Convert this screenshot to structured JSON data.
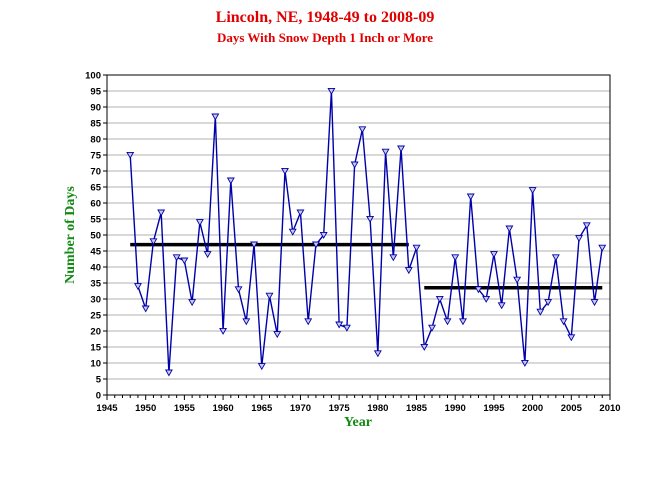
{
  "chart_data": {
    "type": "line",
    "title": "Lincoln, NE, 1948-49 to 2008-09",
    "subtitle": "Days With Snow Depth 1 Inch or More",
    "xlabel": "Year",
    "ylabel": "Number of Days",
    "xlim": [
      1945,
      2010
    ],
    "ylim": [
      0,
      100
    ],
    "xticks": [
      1945,
      1950,
      1955,
      1960,
      1965,
      1970,
      1975,
      1980,
      1985,
      1990,
      1995,
      2000,
      2005,
      2010
    ],
    "yticks": [
      0,
      5,
      10,
      15,
      20,
      25,
      30,
      35,
      40,
      45,
      50,
      55,
      60,
      65,
      70,
      75,
      80,
      85,
      90,
      95,
      100
    ],
    "grid": true,
    "series": [
      {
        "color": "#0000aa",
        "marker": "triangle-down",
        "x": [
          1948,
          1949,
          1950,
          1951,
          1952,
          1953,
          1954,
          1955,
          1956,
          1957,
          1958,
          1959,
          1960,
          1961,
          1962,
          1963,
          1964,
          1965,
          1966,
          1967,
          1968,
          1969,
          1970,
          1971,
          1972,
          1973,
          1974,
          1975,
          1976,
          1977,
          1978,
          1979,
          1980,
          1981,
          1982,
          1983,
          1984,
          1985,
          1986,
          1987,
          1988,
          1989,
          1990,
          1991,
          1992,
          1993,
          1994,
          1995,
          1996,
          1997,
          1998,
          1999,
          2000,
          2001,
          2002,
          2003,
          2004,
          2005,
          2006,
          2007,
          2008,
          2009
        ],
        "values": [
          75,
          34,
          27,
          48,
          57,
          7,
          43,
          42,
          29,
          54,
          44,
          87,
          20,
          67,
          33,
          23,
          47,
          9,
          31,
          19,
          70,
          51,
          57,
          23,
          47,
          50,
          95,
          22,
          21,
          72,
          83,
          55,
          13,
          76,
          43,
          77,
          39,
          46,
          15,
          21,
          30,
          23,
          43,
          23,
          62,
          33,
          30,
          44,
          28,
          52,
          36,
          10,
          64,
          26,
          29,
          43,
          23,
          18,
          49,
          53,
          29,
          46
        ]
      }
    ],
    "reference_lines": [
      {
        "x_start": 1948,
        "x_end": 1984,
        "value": 47,
        "color": "#000000"
      },
      {
        "x_start": 1986,
        "x_end": 2009,
        "value": 33.5,
        "color": "#000000"
      }
    ]
  }
}
